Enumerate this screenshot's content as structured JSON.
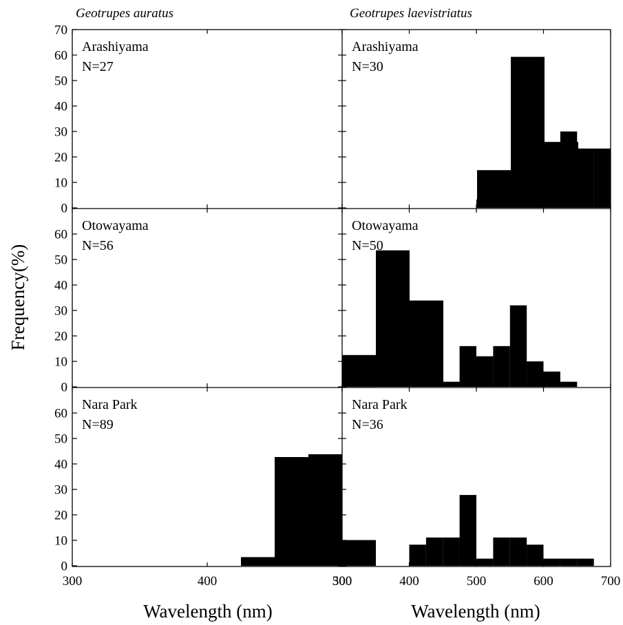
{
  "chart_data": {
    "type": "bar",
    "ylabel": "Frequency(%)",
    "xlabel": "Wavelength (nm)",
    "grid": false,
    "legend": "none",
    "bin_width": 25,
    "columns": [
      {
        "species": "Geotrupes auratus",
        "xlim": [
          300,
          500
        ],
        "xticks": [
          "300",
          "400",
          "500"
        ]
      },
      {
        "species": "Geotrupes laevistriatus",
        "xlim": [
          300,
          700
        ],
        "xticks": [
          "300",
          "400",
          "500",
          "600",
          "700"
        ]
      }
    ],
    "rows": [
      {
        "ylim": [
          0,
          70
        ],
        "yticks": [
          "0",
          "10",
          "20",
          "30",
          "40",
          "50",
          "60",
          "70"
        ]
      },
      {
        "ylim": [
          0,
          70
        ],
        "yticks": [
          "0",
          "10",
          "20",
          "30",
          "40",
          "50",
          "60"
        ]
      },
      {
        "ylim": [
          0,
          70
        ],
        "yticks": [
          "0",
          "10",
          "20",
          "30",
          "40",
          "50",
          "60"
        ]
      }
    ],
    "panels": [
      {
        "row": 0,
        "col": 0,
        "site": "Arashiyama",
        "n": "N=27",
        "bins": [
          {
            "x": 600,
            "value": 14.8
          },
          {
            "x": 625,
            "value": 59.3
          },
          {
            "x": 650,
            "value": 25.9
          }
        ]
      },
      {
        "row": 0,
        "col": 1,
        "site": "Arashiyama",
        "n": "N=30",
        "bins": [
          {
            "x": 500,
            "value": 3.3
          },
          {
            "x": 575,
            "value": 6.7
          },
          {
            "x": 600,
            "value": 13.3
          },
          {
            "x": 625,
            "value": 30.0
          },
          {
            "x": 650,
            "value": 23.3
          },
          {
            "x": 675,
            "value": 23.3
          }
        ]
      },
      {
        "row": 1,
        "col": 0,
        "site": "Otowayama",
        "n": "N=56",
        "bins": [
          {
            "x": 500,
            "value": 12.5
          },
          {
            "x": 525,
            "value": 53.6
          },
          {
            "x": 550,
            "value": 33.9
          }
        ]
      },
      {
        "row": 1,
        "col": 1,
        "site": "Otowayama",
        "n": "N=50",
        "bins": [
          {
            "x": 400,
            "value": 2
          },
          {
            "x": 425,
            "value": 2
          },
          {
            "x": 450,
            "value": 2
          },
          {
            "x": 475,
            "value": 16
          },
          {
            "x": 500,
            "value": 12
          },
          {
            "x": 525,
            "value": 16
          },
          {
            "x": 550,
            "value": 32
          },
          {
            "x": 575,
            "value": 10
          },
          {
            "x": 600,
            "value": 6
          },
          {
            "x": 625,
            "value": 2
          }
        ]
      },
      {
        "row": 2,
        "col": 0,
        "site": "Nara Park",
        "n": "N=89",
        "bins": [
          {
            "x": 425,
            "value": 3.4
          },
          {
            "x": 450,
            "value": 42.7
          },
          {
            "x": 475,
            "value": 43.8
          },
          {
            "x": 500,
            "value": 10.1
          }
        ]
      },
      {
        "row": 2,
        "col": 1,
        "site": "Nara Park",
        "n": "N=36",
        "bins": [
          {
            "x": 400,
            "value": 8.3
          },
          {
            "x": 425,
            "value": 11.1
          },
          {
            "x": 450,
            "value": 11.1
          },
          {
            "x": 475,
            "value": 27.8
          },
          {
            "x": 500,
            "value": 2.8
          },
          {
            "x": 525,
            "value": 11.1
          },
          {
            "x": 550,
            "value": 11.1
          },
          {
            "x": 575,
            "value": 8.3
          },
          {
            "x": 600,
            "value": 2.8
          },
          {
            "x": 625,
            "value": 2.8
          },
          {
            "x": 650,
            "value": 2.8
          }
        ]
      }
    ]
  }
}
